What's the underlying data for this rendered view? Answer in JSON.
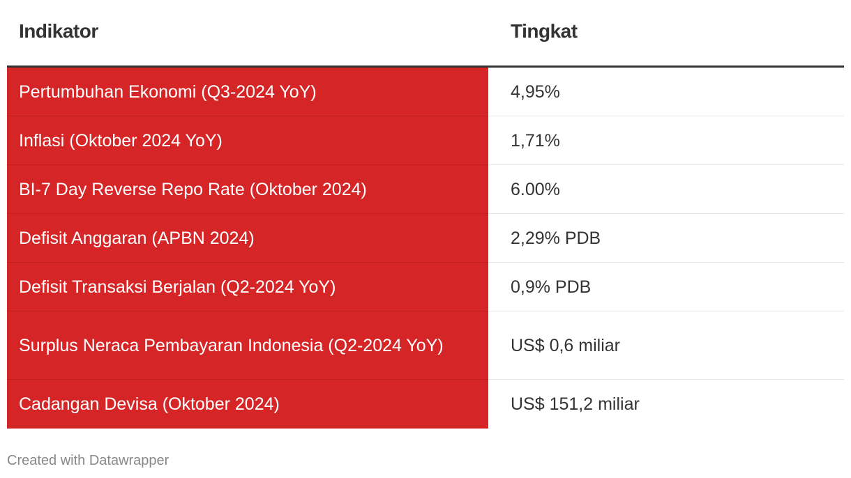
{
  "chart_data": {
    "type": "table",
    "columns": [
      "Indikator",
      "Tingkat"
    ],
    "rows": [
      {
        "indikator": "Pertumbuhan Ekonomi (Q3-2024 YoY)",
        "tingkat": "4,95%"
      },
      {
        "indikator": "Inflasi (Oktober 2024 YoY)",
        "tingkat": "1,71%"
      },
      {
        "indikator": "BI-7 Day Reverse Repo Rate (Oktober 2024)",
        "tingkat": "6.00%"
      },
      {
        "indikator": "Defisit Anggaran (APBN 2024)",
        "tingkat": "2,29% PDB"
      },
      {
        "indikator": "Defisit Transaksi Berjalan (Q2-2024 YoY)",
        "tingkat": "0,9% PDB"
      },
      {
        "indikator": "Surplus Neraca Pembayaran Indonesia (Q2-2024 YoY)",
        "tingkat": "US$ 0,6 miliar"
      },
      {
        "indikator": "Cadangan Devisa (Oktober 2024)",
        "tingkat": "US$ 151,2 miliar"
      }
    ]
  },
  "colors": {
    "indicator_background": "#d52527",
    "indicator_text": "#ffffff",
    "header_rule": "#333333",
    "row_divider": "#e6e6e6",
    "footer_text": "#888888"
  },
  "footer": {
    "credit": "Created with Datawrapper"
  }
}
